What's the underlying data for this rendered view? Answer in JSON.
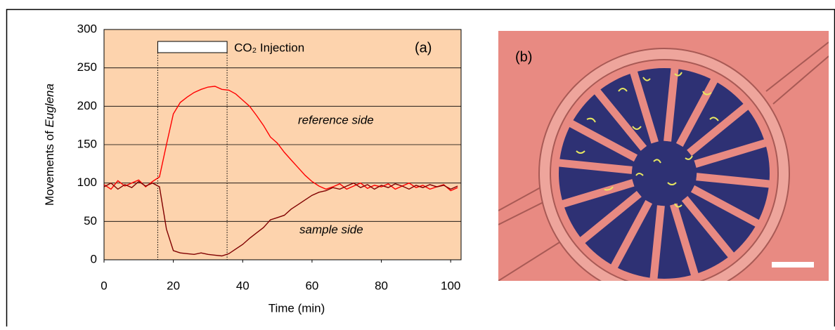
{
  "chart_data": {
    "type": "line",
    "x": [
      0,
      2,
      4,
      6,
      8,
      10,
      12,
      14,
      16,
      18,
      20,
      22,
      24,
      26,
      28,
      30,
      32,
      34,
      36,
      38,
      40,
      42,
      44,
      46,
      48,
      50,
      52,
      54,
      56,
      58,
      60,
      62,
      64,
      66,
      68,
      70,
      72,
      74,
      76,
      78,
      80,
      82,
      84,
      86,
      88,
      90,
      92,
      94,
      96,
      98,
      100,
      102
    ],
    "series": [
      {
        "name": "reference side",
        "color": "#ff0000",
        "values": [
          98,
          92,
          103,
          96,
          100,
          104,
          95,
          102,
          108,
          150,
          190,
          205,
          212,
          218,
          222,
          225,
          226,
          222,
          221,
          216,
          208,
          200,
          188,
          175,
          160,
          152,
          140,
          130,
          120,
          110,
          102,
          96,
          92,
          95,
          99,
          92,
          96,
          100,
          93,
          97,
          95,
          99,
          92,
          96,
          100,
          94,
          97,
          92,
          95,
          98,
          90,
          94
        ]
      },
      {
        "name": "sample side",
        "color": "#800000",
        "values": [
          95,
          100,
          92,
          98,
          94,
          102,
          96,
          100,
          95,
          40,
          12,
          9,
          8,
          7,
          9,
          7,
          6,
          5,
          8,
          14,
          20,
          28,
          35,
          42,
          52,
          55,
          58,
          66,
          72,
          78,
          84,
          88,
          90,
          94,
          92,
          96,
          100,
          94,
          98,
          92,
          97,
          94,
          99,
          96,
          92,
          97,
          94,
          98,
          95,
          97,
          92,
          96
        ]
      }
    ],
    "xlim": [
      0,
      103
    ],
    "ylim": [
      0,
      300
    ],
    "xticks": [
      0,
      20,
      40,
      60,
      80,
      100
    ],
    "yticks": [
      0,
      50,
      100,
      150,
      200,
      250,
      300
    ],
    "grid": true,
    "background": "#fdd3ad",
    "xlabel": "Time (min)",
    "ylabel": [
      "Movements of ",
      "Euglena"
    ],
    "panel_label": "(a)",
    "injection": {
      "label": "CO₂ Injection",
      "start": 15.5,
      "end": 35.5
    }
  },
  "panel_b": {
    "label": "(b)"
  }
}
